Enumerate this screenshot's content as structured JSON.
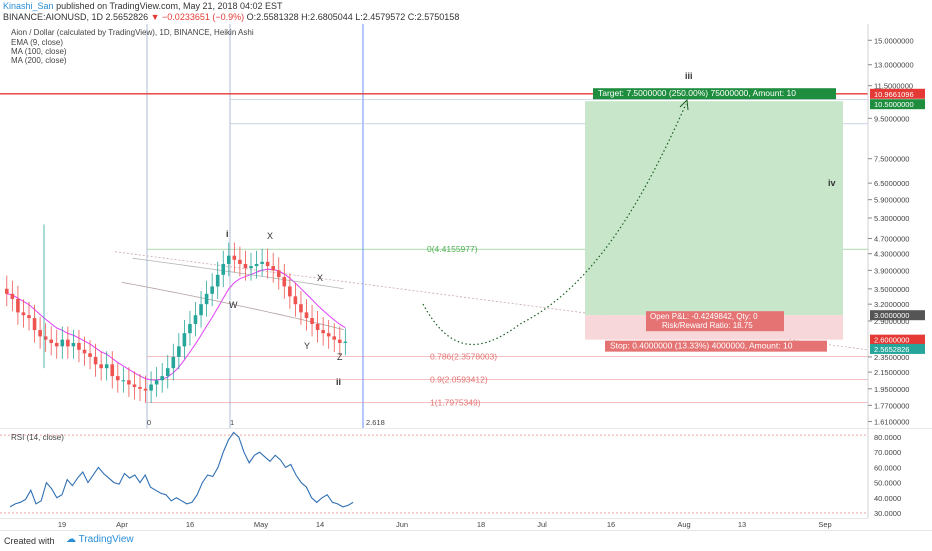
{
  "header": {
    "user": "Kinashi_San",
    "published": "published on TradingView.com, May 21, 2018 04:02 EST",
    "symbol": "BINANCE:AIONUSD, 1D",
    "last": "2.5652826",
    "change": "−0.0233651 (−0.9%)",
    "ohlc": "O:2.5581328 H:2.6805044 L:2.4579572 C:2.5750158"
  },
  "legend": {
    "title": "Aion / Dollar (calculated by TradingView), 1D, BINANCE, Heikin Ashi",
    "ema": "EMA (9, close)",
    "ma100": "MA (100, close)",
    "ma200": "MA (200, close)"
  },
  "price_axis": [
    "15.0000000",
    "13.0000000",
    "11.5000000",
    "9.5000000",
    "7.5000000",
    "6.5000000",
    "5.9000000",
    "5.3000000",
    "4.7000000",
    "4.3000000",
    "3.9000000",
    "3.5000000",
    "3.2000000",
    "2.9000000",
    "2.3500000",
    "2.1500000",
    "1.9500000",
    "1.7700000",
    "1.6100000"
  ],
  "price_tags": [
    {
      "label": "10.9661096",
      "color": "#e53935"
    },
    {
      "label": "10.5000000",
      "color": "#1e8e3e"
    },
    {
      "label": "3.0000000",
      "color": "#555555"
    },
    {
      "label": "2.6000000",
      "color": "#e53935"
    },
    {
      "label": "2.5652826",
      "color": "#26a69a"
    }
  ],
  "fib_levels": [
    {
      "label": "0(4.4155977)",
      "color": "#4caf50"
    },
    {
      "label": "0.786(2.3578003)",
      "color": "#e57373"
    },
    {
      "label": "0.9(2.0593412)",
      "color": "#e57373"
    },
    {
      "label": "1(1.7975349)",
      "color": "#e57373"
    }
  ],
  "fib_ext": {
    "zero": "0",
    "one": "1",
    "ext": "2.618"
  },
  "waves": {
    "i": "i",
    "ii": "ii",
    "iii": "iii",
    "iv": "iv",
    "w": "W",
    "x1": "X",
    "x2": "X",
    "y": "Y",
    "z": "Z"
  },
  "position": {
    "target": "Target: 7.5000000 (250.00%) 75000000, Amount: 10",
    "pnl": "Open P&L: -0.4249842, Qty: 0",
    "rr": "Risk/Reward Ratio: 18.75",
    "stop": "Stop: 0.4000000 (13.33%) 4000000, Amount: 10"
  },
  "time_axis": [
    "19",
    "Apr",
    "16",
    "May",
    "14",
    "Jun",
    "18",
    "Jul",
    "16",
    "Aug",
    "13",
    "Sep"
  ],
  "rsi": {
    "label": "RSI (14, close)",
    "axis": [
      "80.0000",
      "70.0000",
      "60.0000",
      "50.0000",
      "40.0000",
      "30.0000"
    ],
    "values": [
      34,
      36,
      37,
      39,
      45,
      36,
      38,
      50,
      46,
      40,
      42,
      52,
      48,
      53,
      57,
      50,
      55,
      60,
      56,
      53,
      50,
      49,
      56,
      53,
      55,
      50,
      55,
      47,
      45,
      43,
      42,
      38,
      40,
      38,
      36,
      37,
      42,
      50,
      55,
      54,
      60,
      70,
      78,
      83,
      80,
      70,
      63,
      68,
      70,
      67,
      64,
      68,
      65,
      60,
      62,
      55,
      50,
      47,
      40,
      37,
      40,
      42,
      37,
      36,
      34,
      35,
      37
    ]
  },
  "chart_data": {
    "type": "candlestick",
    "title": "Aion / Dollar (calculated by TradingView), 1D, BINANCE, Heikin Ashi",
    "y_scale": "log",
    "ylim": [
      1.55,
      16.5
    ],
    "candles_close": [
      3.4,
      3.3,
      3.05,
      3.0,
      2.95,
      2.75,
      2.65,
      2.6,
      2.55,
      2.5,
      2.6,
      2.5,
      2.55,
      2.45,
      2.4,
      2.35,
      2.25,
      2.2,
      2.25,
      2.1,
      2.05,
      2.05,
      2.0,
      1.97,
      1.95,
      1.93,
      2.0,
      2.05,
      2.1,
      2.2,
      2.35,
      2.5,
      2.7,
      2.85,
      3.0,
      3.2,
      3.4,
      3.55,
      3.8,
      4.05,
      4.25,
      4.15,
      4.05,
      3.95,
      4.0,
      4.05,
      4.1,
      4.0,
      3.9,
      3.75,
      3.55,
      3.35,
      3.2,
      3.05,
      2.95,
      2.85,
      2.75,
      2.7,
      2.65,
      2.6,
      2.55,
      2.57
    ],
    "series": [
      {
        "name": "EMA (9, close)",
        "color": "#e040fb"
      },
      {
        "name": "MA (100, close)",
        "color": "#b5a0a0"
      },
      {
        "name": "MA (200, close)",
        "color": "#a0a0a0"
      }
    ],
    "fibonacci": [
      {
        "level": 0,
        "price": 4.4155977
      },
      {
        "level": 0.786,
        "price": 2.3578003
      },
      {
        "level": 0.9,
        "price": 2.0593412
      },
      {
        "level": 1,
        "price": 1.7975349
      }
    ],
    "long_position": {
      "entry": 3.0,
      "target": 10.5,
      "stop": 2.6
    }
  }
}
